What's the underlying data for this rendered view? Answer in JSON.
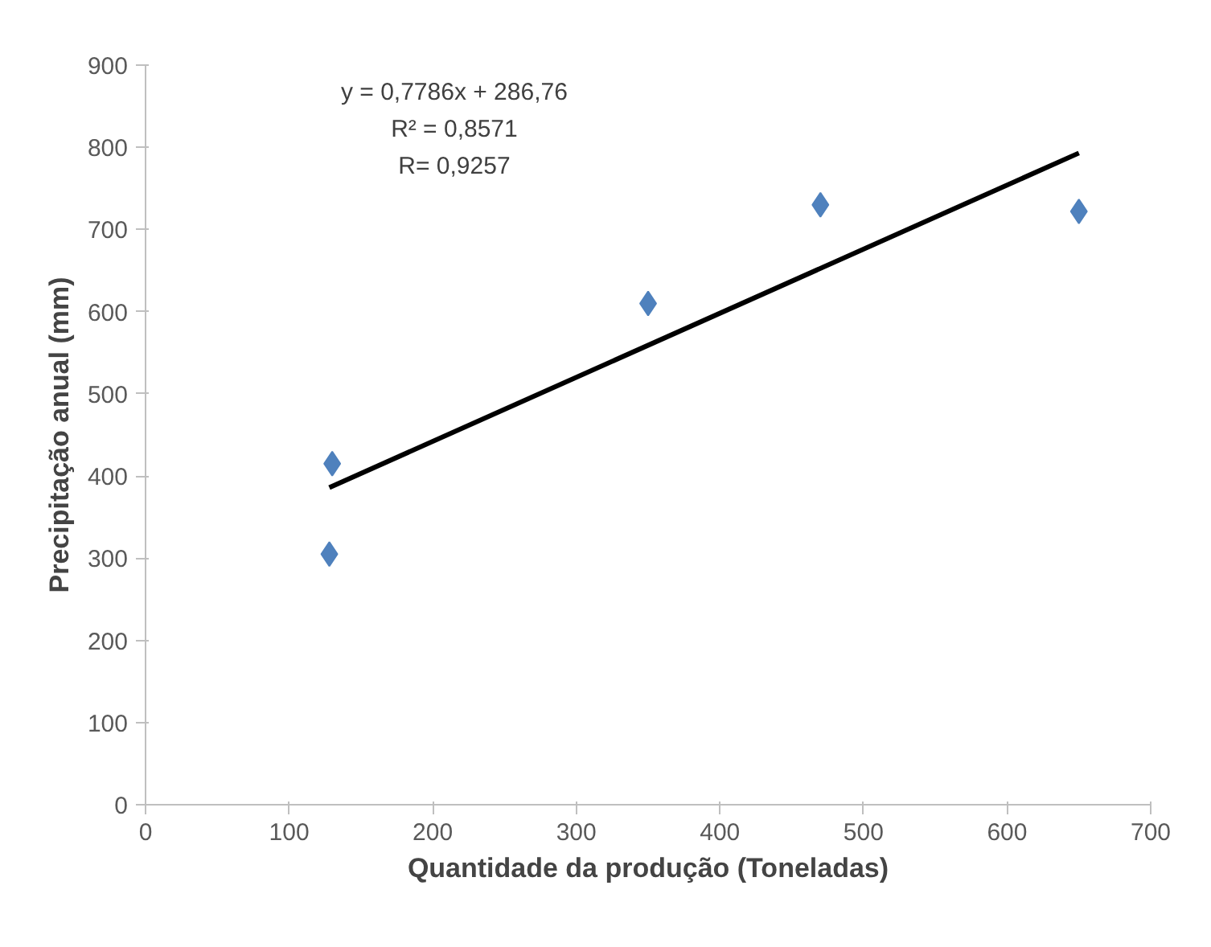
{
  "chart_data": {
    "type": "scatter",
    "xlabel": "Quantidade da produção (Toneladas)",
    "ylabel": "Precipitação anual (mm)",
    "annotations": [
      "y = 0,7786x + 286,76",
      "R² = 0,8571",
      "R= 0,9257"
    ],
    "series": [
      {
        "color": "#4f81bd",
        "marker": "diamond",
        "x": [
          128,
          130,
          350,
          470,
          650
        ],
        "values": [
          305,
          415,
          610,
          730,
          722
        ]
      },
      {
        "type": "line",
        "color": "#000000",
        "x": [
          128,
          650
        ],
        "values": [
          386,
          793
        ]
      }
    ],
    "xlim": [
      0,
      700
    ],
    "xticks": [
      0,
      100,
      200,
      300,
      400,
      500,
      600,
      700
    ],
    "ylim": [
      0,
      900
    ],
    "yticks": [
      0,
      100,
      200,
      300,
      400,
      500,
      600,
      700,
      800,
      900
    ],
    "grid": false
  }
}
